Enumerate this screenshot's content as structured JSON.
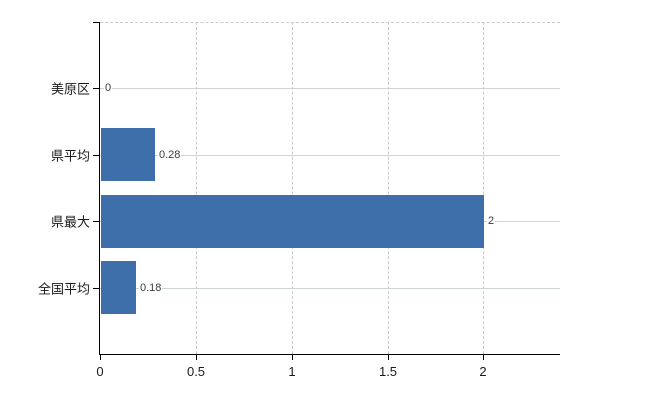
{
  "chart": {
    "background_color": "#ffffff",
    "bar_color": "#3e6fab",
    "axis_color": "#000000",
    "grid_vertical_color": "#c9c9c9",
    "grid_horizontal_color": "#cfd6cf",
    "value_label_color": "#3a3a3a",
    "tick_label_color": "#1a1a1a"
  },
  "chart_data": {
    "type": "bar",
    "orientation": "horizontal",
    "title": "",
    "xlabel": "",
    "ylabel": "",
    "categories": [
      "美原区",
      "県平均",
      "県最大",
      "全国平均"
    ],
    "values": [
      0,
      0.28,
      2,
      0.18
    ],
    "value_labels": [
      "0",
      "0.28",
      "2",
      "0.18"
    ],
    "x_tick_values": [
      0,
      0.5,
      1,
      1.5,
      2
    ],
    "x_tick_labels": [
      "0",
      "0.5",
      "1",
      "1.5",
      "2"
    ],
    "xlim": [
      0,
      2.4
    ],
    "grid": true,
    "legend": false
  }
}
